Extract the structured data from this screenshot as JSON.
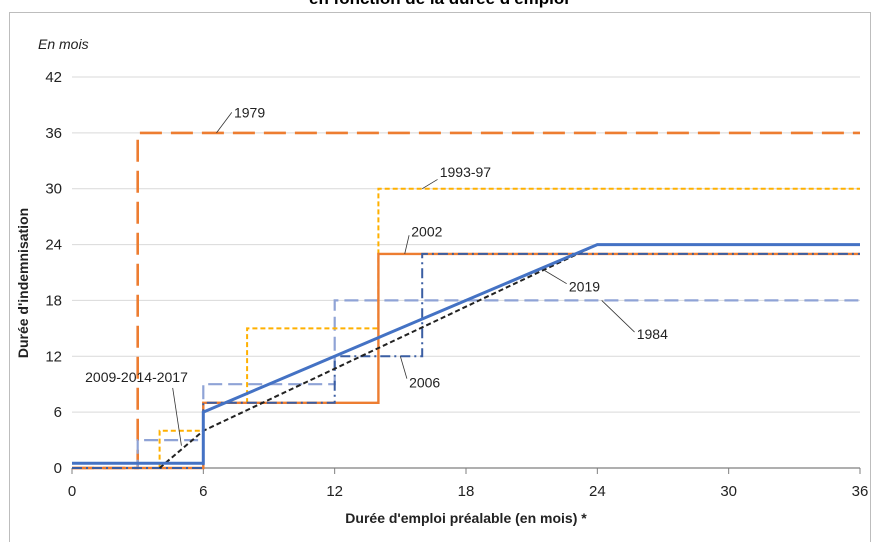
{
  "title": "en fonction de la durée d'emploi",
  "chart_data": {
    "type": "line",
    "unit_label": "En mois",
    "xlabel": "Durée d'emploi préalable (en mois) *",
    "ylabel": "Durée d'indemnisation",
    "xlim": [
      0,
      36
    ],
    "ylim": [
      0,
      42
    ],
    "x_ticks": [
      0,
      6,
      12,
      18,
      24,
      30,
      36
    ],
    "y_ticks": [
      0,
      6,
      12,
      18,
      24,
      30,
      36,
      42
    ],
    "grid": "horizontal",
    "series": [
      {
        "name": "1979",
        "color": "#ed7d31",
        "dash": "22,9",
        "width": 2.6,
        "label_xy": [
          7.4,
          38.2
        ],
        "points": [
          [
            0,
            0
          ],
          [
            3,
            0
          ],
          [
            3,
            36
          ],
          [
            36,
            36
          ]
        ]
      },
      {
        "name": "1984",
        "color": "#8fa3d6",
        "dash": "14,6",
        "width": 2.2,
        "label_xy": [
          25.8,
          14.4
        ],
        "points": [
          [
            0,
            0
          ],
          [
            3,
            0
          ],
          [
            3,
            3
          ],
          [
            6,
            3
          ],
          [
            6,
            9
          ],
          [
            12,
            9
          ],
          [
            12,
            18
          ],
          [
            36,
            18
          ]
        ]
      },
      {
        "name": "1993-97",
        "color": "#ffb000",
        "dash": "5,3",
        "width": 2.0,
        "label_xy": [
          16.8,
          31.8
        ],
        "points": [
          [
            0,
            0
          ],
          [
            4,
            0
          ],
          [
            4,
            4
          ],
          [
            6,
            4
          ],
          [
            6,
            7
          ],
          [
            8,
            7
          ],
          [
            8,
            15
          ],
          [
            14,
            15
          ],
          [
            14,
            30
          ],
          [
            36,
            30
          ]
        ]
      },
      {
        "name": "2002",
        "color": "#ed7d31",
        "dash": "",
        "width": 2.4,
        "label_xy": [
          15.5,
          25.4
        ],
        "points": [
          [
            0,
            0
          ],
          [
            6,
            0
          ],
          [
            6,
            7
          ],
          [
            14,
            7
          ],
          [
            14,
            23
          ],
          [
            36,
            23
          ]
        ]
      },
      {
        "name": "2006",
        "color": "#3a5ea3",
        "dash": "10,4,2,4",
        "width": 2.0,
        "label_xy": [
          15.4,
          9.2
        ],
        "points": [
          [
            0,
            0
          ],
          [
            6,
            0
          ],
          [
            6,
            7
          ],
          [
            12,
            7
          ],
          [
            12,
            12
          ],
          [
            16,
            12
          ],
          [
            16,
            23
          ],
          [
            36,
            23
          ]
        ]
      },
      {
        "name": "2009-2014-2017",
        "color": "#222222",
        "dash": "5,3",
        "width": 2.0,
        "label_xy": [
          0.6,
          9.8
        ],
        "points": [
          [
            4,
            0
          ],
          [
            6,
            4
          ],
          [
            24,
            24
          ],
          [
            36,
            24
          ]
        ]
      },
      {
        "name": "2019",
        "color": "#4472c4",
        "dash": "",
        "width": 3.0,
        "label_xy": [
          22.7,
          19.5
        ],
        "points": [
          [
            0,
            0.5
          ],
          [
            6,
            0.5
          ],
          [
            6,
            6
          ],
          [
            24,
            24
          ],
          [
            36,
            24
          ]
        ]
      }
    ]
  }
}
